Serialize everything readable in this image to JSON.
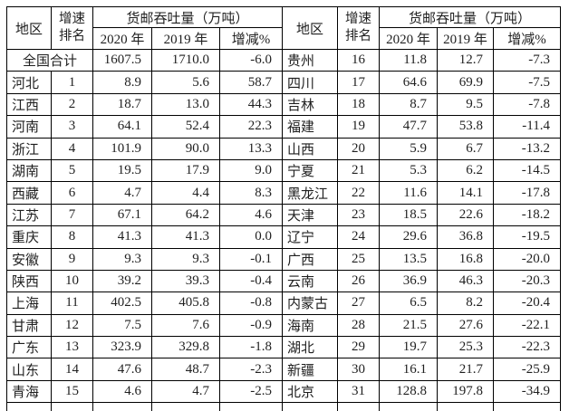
{
  "table": {
    "header": {
      "region_label": "地区",
      "rank_label_line1": "增速",
      "rank_label_line2": "排名",
      "group_label": "货邮吞吐量（万吨）",
      "year_2020_label": "2020 年",
      "year_2019_label": "2019 年",
      "change_label": "增减%"
    },
    "left_rows": [
      {
        "region": "全国合计",
        "rank": "",
        "merged": true,
        "y2020": "1607.5",
        "y2019": "1710.0",
        "change": "-6.0"
      },
      {
        "region": "河北",
        "rank": "1",
        "y2020": "8.9",
        "y2019": "5.6",
        "change": "58.7"
      },
      {
        "region": "江西",
        "rank": "2",
        "y2020": "18.7",
        "y2019": "13.0",
        "change": "44.3"
      },
      {
        "region": "河南",
        "rank": "3",
        "y2020": "64.1",
        "y2019": "52.4",
        "change": "22.3"
      },
      {
        "region": "浙江",
        "rank": "4",
        "y2020": "101.9",
        "y2019": "90.0",
        "change": "13.3"
      },
      {
        "region": "湖南",
        "rank": "5",
        "y2020": "19.5",
        "y2019": "17.9",
        "change": "9.0"
      },
      {
        "region": "西藏",
        "rank": "6",
        "y2020": "4.7",
        "y2019": "4.4",
        "change": "8.3"
      },
      {
        "region": "江苏",
        "rank": "7",
        "y2020": "67.1",
        "y2019": "64.2",
        "change": "4.6"
      },
      {
        "region": "重庆",
        "rank": "8",
        "y2020": "41.3",
        "y2019": "41.3",
        "change": "0.0"
      },
      {
        "region": "安徽",
        "rank": "9",
        "y2020": "9.3",
        "y2019": "9.3",
        "change": "-0.1"
      },
      {
        "region": "陕西",
        "rank": "10",
        "y2020": "39.2",
        "y2019": "39.3",
        "change": "-0.4"
      },
      {
        "region": "上海",
        "rank": "11",
        "y2020": "402.5",
        "y2019": "405.8",
        "change": "-0.8"
      },
      {
        "region": "甘肃",
        "rank": "12",
        "y2020": "7.5",
        "y2019": "7.6",
        "change": "-0.9"
      },
      {
        "region": "广东",
        "rank": "13",
        "y2020": "323.9",
        "y2019": "329.8",
        "change": "-1.8"
      },
      {
        "region": "山东",
        "rank": "14",
        "y2020": "47.6",
        "y2019": "48.7",
        "change": "-2.3"
      },
      {
        "region": "青海",
        "rank": "15",
        "y2020": "4.6",
        "y2019": "4.7",
        "change": "-2.5"
      }
    ],
    "right_rows": [
      {
        "region": "贵州",
        "rank": "16",
        "y2020": "11.8",
        "y2019": "12.7",
        "change": "-7.3"
      },
      {
        "region": "四川",
        "rank": "17",
        "y2020": "64.6",
        "y2019": "69.9",
        "change": "-7.5"
      },
      {
        "region": "吉林",
        "rank": "18",
        "y2020": "8.7",
        "y2019": "9.5",
        "change": "-7.8"
      },
      {
        "region": "福建",
        "rank": "19",
        "y2020": "47.7",
        "y2019": "53.8",
        "change": "-11.4"
      },
      {
        "region": "山西",
        "rank": "20",
        "y2020": "5.9",
        "y2019": "6.7",
        "change": "-13.2"
      },
      {
        "region": "宁夏",
        "rank": "21",
        "y2020": "5.3",
        "y2019": "6.2",
        "change": "-14.5"
      },
      {
        "region": "黑龙江",
        "rank": "22",
        "y2020": "11.6",
        "y2019": "14.1",
        "change": "-17.8"
      },
      {
        "region": "天津",
        "rank": "23",
        "y2020": "18.5",
        "y2019": "22.6",
        "change": "-18.2"
      },
      {
        "region": "辽宁",
        "rank": "24",
        "y2020": "29.6",
        "y2019": "36.8",
        "change": "-19.5"
      },
      {
        "region": "广西",
        "rank": "25",
        "y2020": "13.5",
        "y2019": "16.8",
        "change": "-20.0"
      },
      {
        "region": "云南",
        "rank": "26",
        "y2020": "36.9",
        "y2019": "46.3",
        "change": "-20.3"
      },
      {
        "region": "内蒙古",
        "rank": "27",
        "y2020": "6.5",
        "y2019": "8.2",
        "change": "-20.4"
      },
      {
        "region": "海南",
        "rank": "28",
        "y2020": "21.5",
        "y2019": "27.6",
        "change": "-22.1"
      },
      {
        "region": "湖北",
        "rank": "29",
        "y2020": "19.7",
        "y2019": "25.3",
        "change": "-22.3"
      },
      {
        "region": "新疆",
        "rank": "30",
        "y2020": "16.1",
        "y2019": "21.7",
        "change": "-25.9"
      },
      {
        "region": "北京",
        "rank": "31",
        "y2020": "128.8",
        "y2019": "197.8",
        "change": "-34.9"
      }
    ]
  },
  "colors": {
    "border": "#000000",
    "text": "#1f1f1f",
    "background": "#ffffff"
  }
}
